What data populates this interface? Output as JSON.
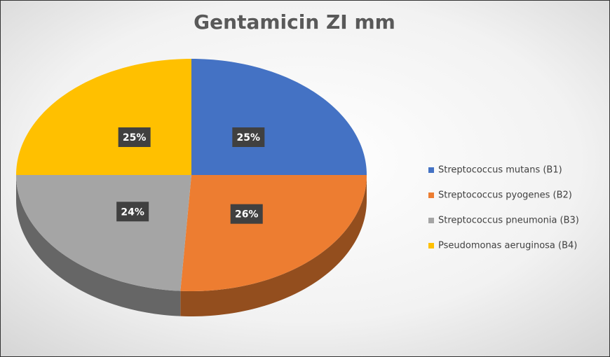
{
  "chart_data": {
    "type": "pie",
    "title": "Gentamicin ZI mm",
    "categories": [
      "Streptococcus mutans (B1)",
      "Streptococcus pyogenes (B2)",
      "Streptococcus pneumonia (B3)",
      "Pseudomonas aeruginosa (B4)"
    ],
    "values": [
      25,
      26,
      24,
      25
    ],
    "value_labels": [
      "25%",
      "26%",
      "24%",
      "25%"
    ],
    "colors": [
      "#4472c4",
      "#ed7d31",
      "#a5a5a5",
      "#ffc000"
    ],
    "legend": "right"
  }
}
